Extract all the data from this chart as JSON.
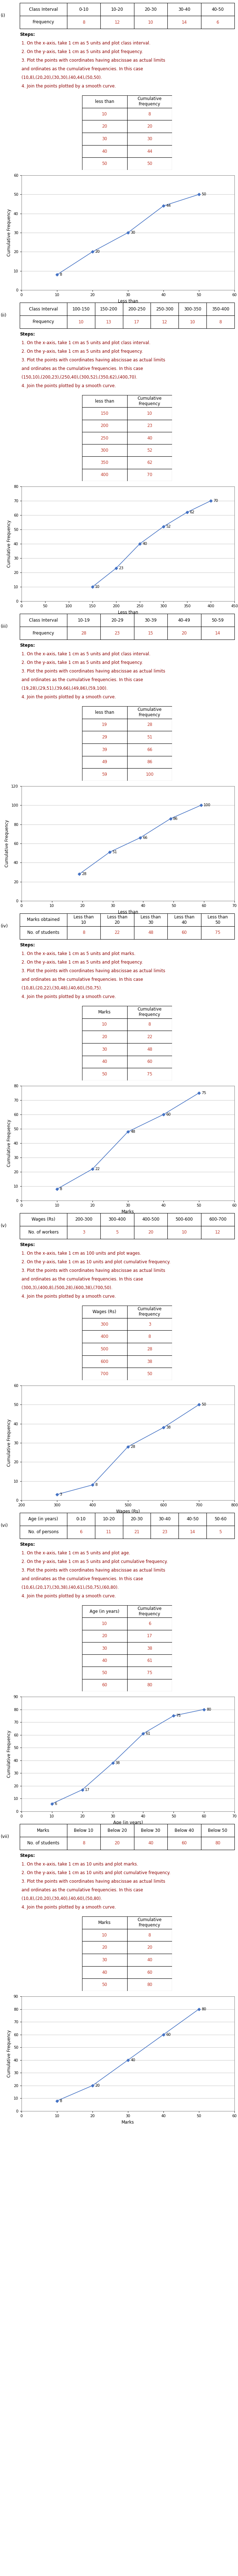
{
  "sections": [
    {
      "label": "(i)",
      "table_title_row": [
        "Class Interval",
        "0-10",
        "10-20",
        "20-30",
        "30-40",
        "40-50"
      ],
      "table_data_row": [
        "Frequency",
        "8",
        "12",
        "10",
        "14",
        "6"
      ],
      "steps_text": [
        "Steps:",
        "1. On the x-axis, take 1 cm as 5 units and plot class interval.",
        "2. On the y-axis, take 1 cm as 5 units and plot frequency.",
        "3. Plot the points with coordinates having abscissae as actual limits",
        "and ordinates as the cumulative frequencies. In this case",
        "(10,8),(20,20),(30,30),(40,44),(50,50).",
        "4. Join the points plotted by a smooth curve."
      ],
      "cf_table": {
        "headers": [
          "less than",
          "Cumulative\nFrequency"
        ],
        "rows": [
          [
            "10",
            "8"
          ],
          [
            "20",
            "20"
          ],
          [
            "30",
            "30"
          ],
          [
            "40",
            "44"
          ],
          [
            "50",
            "50"
          ]
        ]
      },
      "plot": {
        "x": [
          10,
          20,
          30,
          40,
          50
        ],
        "y": [
          8,
          20,
          30,
          44,
          50
        ],
        "labels": [
          "8",
          "20",
          "30",
          "44",
          "50"
        ],
        "xlabel": "Less than",
        "ylabel": "Cumulative Frequency",
        "xlim": [
          0,
          60
        ],
        "ylim": [
          0,
          60
        ],
        "xticks": [
          0,
          10,
          20,
          30,
          40,
          50,
          60
        ],
        "yticks": [
          0,
          10,
          20,
          30,
          40,
          50,
          60
        ]
      }
    },
    {
      "label": "(ii)",
      "table_title_row": [
        "Class Interval",
        "100-150",
        "150-200",
        "200-250",
        "250-300",
        "300-350",
        "350-400"
      ],
      "table_data_row": [
        "Frequency",
        "10",
        "13",
        "17",
        "12",
        "10",
        "8"
      ],
      "steps_text": [
        "Steps:",
        "1. On the x-axis, take 1 cm as 5 units and plot class interval.",
        "2. On the y-axis, take 1 cm as 5 units and plot frequency.",
        "3. Plot the points with coordinates having abscissae as actual limits",
        "and ordinates as the cumulative frequencies. In this case",
        "(150,10),(200,23),(250,40),(300,52),(350,62),(400,70).",
        "4. Join the points plotted by a smooth curve."
      ],
      "cf_table": {
        "headers": [
          "less than",
          "Cumulative\nFrequency"
        ],
        "rows": [
          [
            "150",
            "10"
          ],
          [
            "200",
            "23"
          ],
          [
            "250",
            "40"
          ],
          [
            "300",
            "52"
          ],
          [
            "350",
            "62"
          ],
          [
            "400",
            "70"
          ]
        ]
      },
      "plot": {
        "x": [
          150,
          200,
          250,
          300,
          350,
          400
        ],
        "y": [
          10,
          23,
          40,
          52,
          62,
          70
        ],
        "labels": [
          "10",
          "23",
          "40",
          "52",
          "62",
          "70"
        ],
        "xlabel": "Less than",
        "ylabel": "Cumulative Frequency",
        "xlim": [
          0,
          450
        ],
        "ylim": [
          0,
          80
        ],
        "xticks": [
          0,
          50,
          100,
          150,
          200,
          250,
          300,
          350,
          400,
          450
        ],
        "yticks": [
          0,
          10,
          20,
          30,
          40,
          50,
          60,
          70,
          80
        ]
      }
    },
    {
      "label": "(iii)",
      "table_title_row": [
        "Class Interval",
        "10-19",
        "20-29",
        "30-39",
        "40-49",
        "50-59"
      ],
      "table_data_row": [
        "Frequency",
        "28",
        "23",
        "15",
        "20",
        "14"
      ],
      "steps_text": [
        "Steps:",
        "1. On the x-axis, take 1 cm as 5 units and plot class interval.",
        "2. On the y-axis, take 1 cm as 5 units and plot frequency.",
        "3. Plot the points with coordinates having abscissae as actual limits",
        "and ordinates as the cumulative frequencies. In this case",
        "(19,28),(29,51),(39,66),(49,86),(59,100).",
        "4. Join the points plotted by a smooth curve."
      ],
      "cf_table": {
        "headers": [
          "less than",
          "Cumulative\nFrequency"
        ],
        "rows": [
          [
            "19",
            "28"
          ],
          [
            "29",
            "51"
          ],
          [
            "39",
            "66"
          ],
          [
            "49",
            "86"
          ],
          [
            "59",
            "100"
          ]
        ]
      },
      "plot": {
        "x": [
          19,
          29,
          39,
          49,
          59
        ],
        "y": [
          28,
          51,
          66,
          86,
          100
        ],
        "labels": [
          "28",
          "51",
          "66",
          "86",
          "100"
        ],
        "xlabel": "Less than",
        "ylabel": "Cumulative Frequency",
        "xlim": [
          0,
          70
        ],
        "ylim": [
          0,
          120
        ],
        "xticks": [
          0,
          10,
          20,
          30,
          40,
          50,
          60,
          70
        ],
        "yticks": [
          0,
          20,
          40,
          60,
          80,
          100,
          120
        ]
      }
    },
    {
      "label": "(iv)",
      "table_title_row": [
        "Marks obtained",
        "Less than\n10",
        "Less than\n20",
        "Less than\n30",
        "Less than\n40",
        "Less than\n50"
      ],
      "table_data_row": [
        "No. of students",
        "8",
        "22",
        "48",
        "60",
        "75"
      ],
      "steps_text": [
        "Steps:",
        "1. On the x-axis, take 1 cm as 5 units and plot marks.",
        "2. On the y-axis, take 1 cm as 5 units and plot frequency.",
        "3. Plot the points with coordinates having abscissae as actual limits",
        "and ordinates as the cumulative frequencies. In this case",
        "(10,8),(20,22),(30,48),(40,60),(50,75).",
        "4. Join the points plotted by a smooth curve."
      ],
      "cf_table": {
        "headers": [
          "Marks",
          "Cumulative\nFrequency"
        ],
        "rows": [
          [
            "10",
            "8"
          ],
          [
            "20",
            "22"
          ],
          [
            "30",
            "48"
          ],
          [
            "40",
            "60"
          ],
          [
            "50",
            "75"
          ]
        ]
      },
      "plot": {
        "x": [
          10,
          20,
          30,
          40,
          50
        ],
        "y": [
          8,
          22,
          48,
          60,
          75
        ],
        "labels": [
          "8",
          "22",
          "48",
          "60",
          "75"
        ],
        "xlabel": "Marks",
        "ylabel": "Cumulative Frequency",
        "xlim": [
          0,
          60
        ],
        "ylim": [
          0,
          80
        ],
        "xticks": [
          0,
          10,
          20,
          30,
          40,
          50,
          60
        ],
        "yticks": [
          0,
          10,
          20,
          30,
          40,
          50,
          60,
          70,
          80
        ]
      }
    },
    {
      "label": "(v)",
      "table_title_row": [
        "Wages (Rs)",
        "200-300",
        "300-400",
        "400-500",
        "500-600",
        "600-700"
      ],
      "table_data_row": [
        "No. of workers",
        "3",
        "5",
        "20",
        "10",
        "12"
      ],
      "steps_text": [
        "Steps:",
        "1. On the x-axis, take 1 cm as 100 units and plot wages.",
        "2. On the y-axis, take 1 cm as 10 units and plot cumulative frequency.",
        "3. Plot the points with coordinates having abscissae as actual limits",
        "and ordinates as the cumulative frequencies. In this case",
        "(300,3),(400,8),(500,28),(600,38),(700,50).",
        "4. Join the points plotted by a smooth curve."
      ],
      "cf_table": {
        "headers": [
          "Wages (Rs)",
          "Cumulative\nFrequency"
        ],
        "rows": [
          [
            "300",
            "3"
          ],
          [
            "400",
            "8"
          ],
          [
            "500",
            "28"
          ],
          [
            "600",
            "38"
          ],
          [
            "700",
            "50"
          ]
        ]
      },
      "plot": {
        "x": [
          300,
          400,
          500,
          600,
          700
        ],
        "y": [
          3,
          8,
          28,
          38,
          50
        ],
        "labels": [
          "3",
          "8",
          "28",
          "38",
          "50"
        ],
        "xlabel": "Wages (Rs)",
        "ylabel": "Cumulative Frequency",
        "xlim": [
          200,
          800
        ],
        "ylim": [
          0,
          60
        ],
        "xticks": [
          200,
          300,
          400,
          500,
          600,
          700,
          800
        ],
        "yticks": [
          0,
          10,
          20,
          30,
          40,
          50,
          60
        ]
      }
    },
    {
      "label": "(vi)",
      "table_title_row": [
        "Age (in years)",
        "0-10",
        "10-20",
        "20-30",
        "30-40",
        "40-50",
        "50-60"
      ],
      "table_data_row": [
        "No. of persons",
        "6",
        "11",
        "21",
        "23",
        "14",
        "5"
      ],
      "steps_text": [
        "Steps:",
        "1. On the x-axis, take 1 cm as 5 units and plot age.",
        "2. On the y-axis, take 1 cm as 5 units and plot cumulative frequency.",
        "3. Plot the points with coordinates having abscissae as actual limits",
        "and ordinates as the cumulative frequencies. In this case",
        "(10,6),(20,17),(30,38),(40,61),(50,75),(60,80).",
        "4. Join the points plotted by a smooth curve."
      ],
      "cf_table": {
        "headers": [
          "Age (in years)",
          "Cumulative\nFrequency"
        ],
        "rows": [
          [
            "10",
            "6"
          ],
          [
            "20",
            "17"
          ],
          [
            "30",
            "38"
          ],
          [
            "40",
            "61"
          ],
          [
            "50",
            "75"
          ],
          [
            "60",
            "80"
          ]
        ]
      },
      "plot": {
        "x": [
          10,
          20,
          30,
          40,
          50,
          60
        ],
        "y": [
          6,
          17,
          38,
          61,
          75,
          80
        ],
        "labels": [
          "6",
          "17",
          "38",
          "61",
          "75",
          "80"
        ],
        "xlabel": "Age (in years)",
        "ylabel": "Cumulative Frequency",
        "xlim": [
          0,
          70
        ],
        "ylim": [
          0,
          90
        ],
        "xticks": [
          0,
          10,
          20,
          30,
          40,
          50,
          60,
          70
        ],
        "yticks": [
          0,
          10,
          20,
          30,
          40,
          50,
          60,
          70,
          80,
          90
        ]
      }
    },
    {
      "label": "(vii)",
      "table_title_row": [
        "Marks",
        "Below 10",
        "Below 20",
        "Below 30",
        "Below 40",
        "Below 50"
      ],
      "table_data_row": [
        "No. of students",
        "8",
        "20",
        "40",
        "60",
        "80"
      ],
      "steps_text": [
        "Steps:",
        "1. On the x-axis, take 1 cm as 10 units and plot marks.",
        "2. On the y-axis, take 1 cm as 10 units and plot cumulative frequency.",
        "3. Plot the points with coordinates having abscissae as actual limits",
        "and ordinates as the cumulative frequencies. In this case",
        "(10,8),(20,20),(30,40),(40,60),(50,80).",
        "4. Join the points plotted by a smooth curve."
      ],
      "cf_table": {
        "headers": [
          "Marks",
          "Cumulative\nFrequency"
        ],
        "rows": [
          [
            "10",
            "8"
          ],
          [
            "20",
            "20"
          ],
          [
            "30",
            "40"
          ],
          [
            "40",
            "60"
          ],
          [
            "50",
            "80"
          ]
        ]
      },
      "plot": {
        "x": [
          10,
          20,
          30,
          40,
          50
        ],
        "y": [
          8,
          20,
          40,
          60,
          80
        ],
        "labels": [
          "8",
          "20",
          "40",
          "60",
          "80"
        ],
        "xlabel": "Marks",
        "ylabel": "Cumulative Frequency",
        "xlim": [
          0,
          60
        ],
        "ylim": [
          0,
          90
        ],
        "xticks": [
          0,
          10,
          20,
          30,
          40,
          50,
          60
        ],
        "yticks": [
          0,
          10,
          20,
          30,
          40,
          50,
          60,
          70,
          80,
          90
        ],
        "descending": false
      }
    }
  ],
  "line_color": "#4472C4",
  "marker_color": "#4472C4",
  "marker_style": "D",
  "marker_size": 4,
  "label_fontsize": 7.5,
  "axis_label_fontsize": 8.5,
  "tick_fontsize": 7.5,
  "step_fontsize": 8.5,
  "table_fontsize": 8.5,
  "section_label_fontsize": 9,
  "bg_color": "#ffffff",
  "grid_color": "#cccccc",
  "text_color": "#000000",
  "red_text_color": "#c0392b",
  "step_text_color": "#8B0000"
}
